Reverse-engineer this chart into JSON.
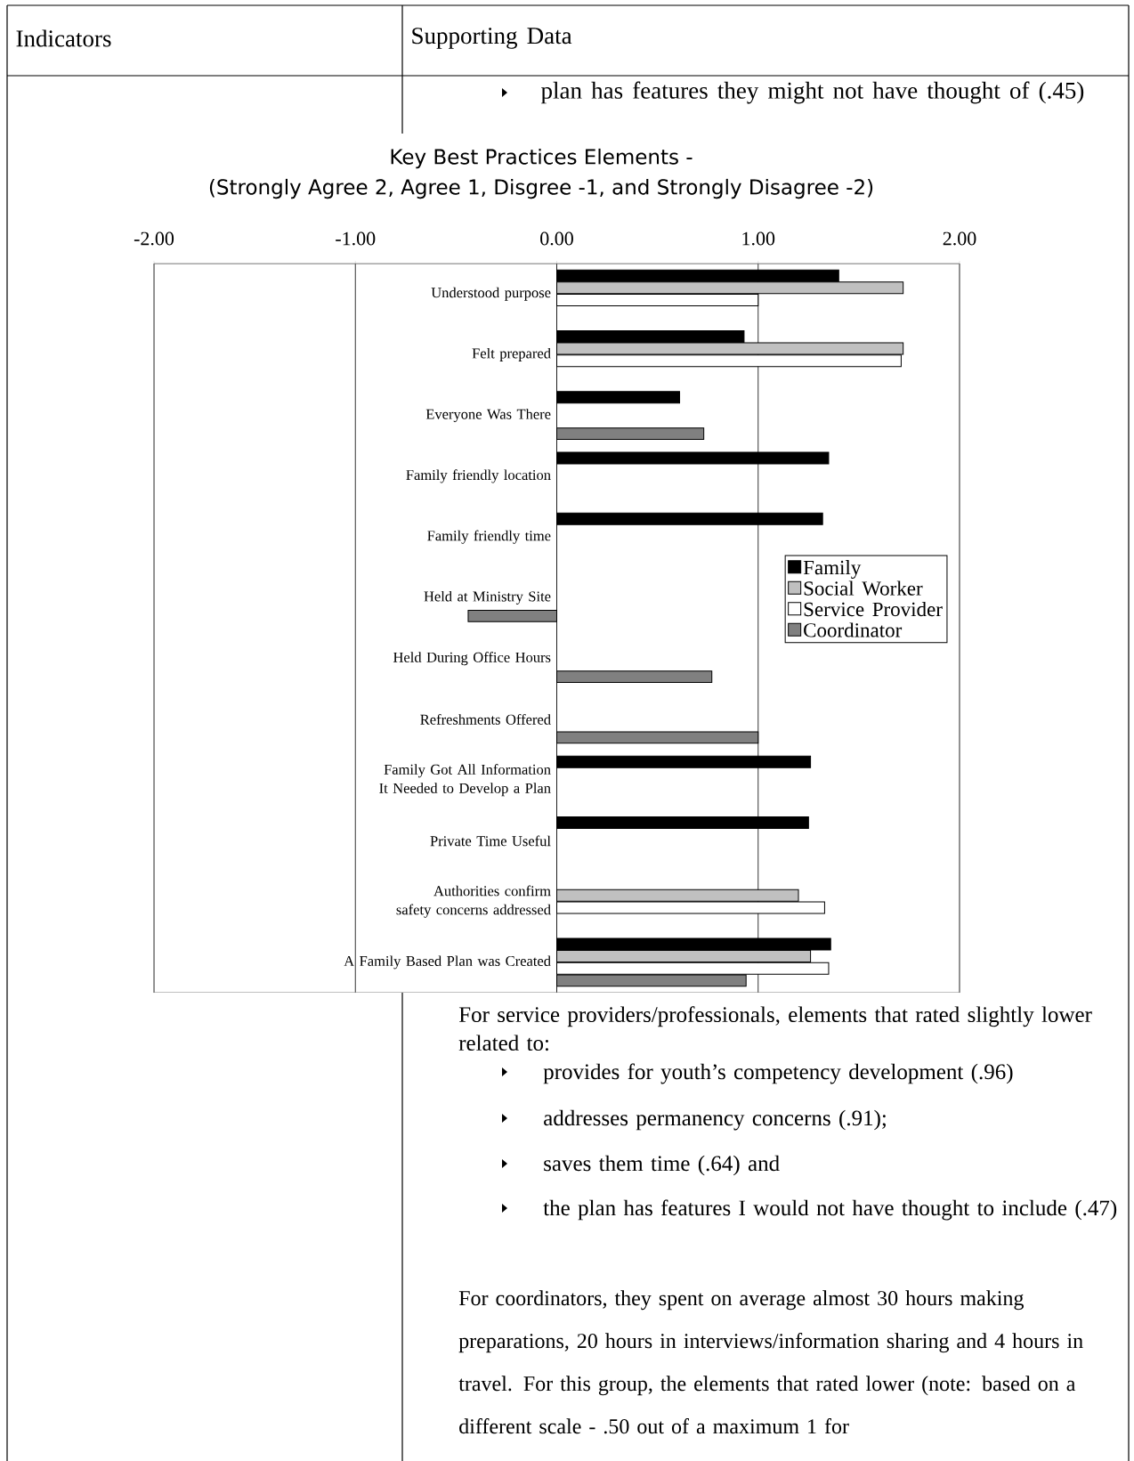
{
  "chart_data": {
    "type": "bar",
    "orientation": "horizontal",
    "title": "Key Best Practices Elements -",
    "subtitle": "(Strongly Agree 2, Agree 1, Disgree -1, and  Strongly Disagree -2)",
    "categories": [
      "Understood purpose",
      "Felt prepared",
      "Everyone Was There",
      "Family friendly location",
      "Family friendly time",
      "Held at Ministry Site",
      "Held During Office Hours",
      "Refreshments Offered",
      "Family Got All Information It Needed to Develop a Plan",
      "Private Time Useful",
      "Authorities confirm safety concerns addressed",
      "A Family Based Plan was Created"
    ],
    "series": [
      {
        "name": "Family",
        "color": "#000000",
        "values": [
          1.4,
          0.93,
          0.61,
          1.35,
          1.32,
          null,
          null,
          null,
          1.26,
          1.25,
          null,
          1.36
        ]
      },
      {
        "name": "Social Worker",
        "color": "#c0c0c0",
        "values": [
          1.72,
          1.72,
          null,
          null,
          null,
          null,
          null,
          null,
          null,
          null,
          1.2,
          1.26
        ]
      },
      {
        "name": "Service Provider",
        "color": "#ffffff",
        "values": [
          1.0,
          1.71,
          null,
          null,
          null,
          null,
          null,
          null,
          null,
          null,
          1.33,
          1.35
        ]
      },
      {
        "name": "Coordinator",
        "color": "#808080",
        "values": [
          null,
          null,
          0.73,
          null,
          null,
          -0.44,
          0.77,
          1.0,
          null,
          null,
          null,
          0.94
        ]
      }
    ],
    "xlim": [
      -2,
      2
    ],
    "xticks": [
      {
        "value": -2,
        "label": "-2.00"
      },
      {
        "value": -1,
        "label": "-1.00"
      },
      {
        "value": 0,
        "label": "0.00"
      },
      {
        "value": 1,
        "label": "1.00"
      },
      {
        "value": 2,
        "label": "2.00"
      }
    ],
    "grid": "x",
    "legend": "right",
    "annotations": [
      "Indicators",
      "Supporting Data",
      "plan has features they might not have thought of (.45)",
      "For service providers/professionals, elements that rated slightly lower related to:",
      "provides for youth’s competency development (.96)",
      "addresses permanency concerns (.91);",
      "saves them time (.64) and",
      "the plan has features I would not have thought to include (.47)",
      "For coordinators, they spent on average almost 30 hours making preparations, 20 hours in interviews/information sharing and 4 hours in travel.   For this group, the elements that rated lower (note:  based on a different scale - .50 out of a maximum 1 for"
    ]
  }
}
